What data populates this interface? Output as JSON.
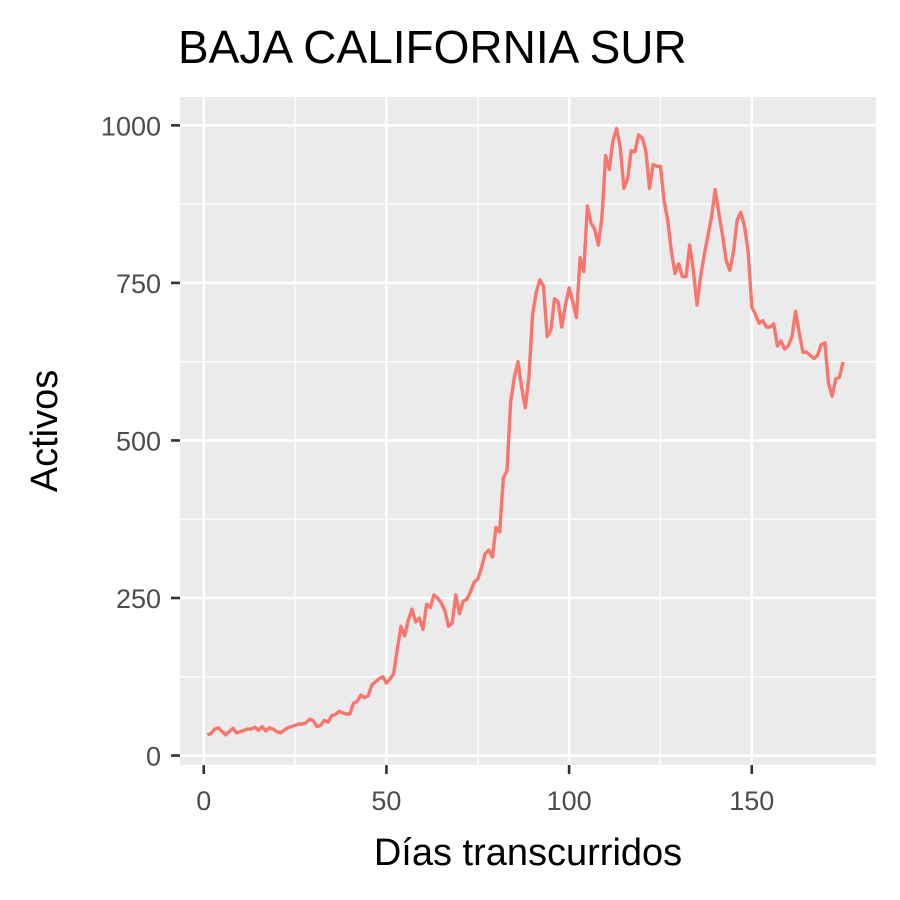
{
  "chart_data": {
    "type": "line",
    "title": "BAJA CALIFORNIA SUR",
    "xlabel": "Días transcurridos",
    "ylabel": "Activos",
    "xlim": [
      -6.5,
      184
    ],
    "ylim": [
      -15,
      1045
    ],
    "x_ticks": [
      0,
      50,
      100,
      150
    ],
    "y_ticks": [
      0,
      250,
      500,
      750,
      1000
    ],
    "grid": true,
    "panel_background": "#ebebeb",
    "series": [
      {
        "color": "#f8766d",
        "x": [
          1,
          2,
          3,
          4,
          5,
          6,
          7,
          8,
          9,
          10,
          11,
          12,
          13,
          14,
          15,
          16,
          17,
          18,
          19,
          20,
          21,
          22,
          23,
          24,
          25,
          26,
          27,
          28,
          29,
          30,
          31,
          32,
          33,
          34,
          35,
          36,
          37,
          38,
          39,
          40,
          41,
          42,
          43,
          44,
          45,
          46,
          47,
          48,
          49,
          50,
          51,
          52,
          53,
          54,
          55,
          56,
          57,
          58,
          59,
          60,
          61,
          62,
          63,
          64,
          65,
          66,
          67,
          68,
          69,
          70,
          71,
          72,
          73,
          74,
          75,
          76,
          77,
          78,
          79,
          80,
          81,
          82,
          83,
          84,
          85,
          86,
          87,
          88,
          89,
          90,
          91,
          92,
          93,
          94,
          95,
          96,
          97,
          98,
          99,
          100,
          101,
          102,
          103,
          104,
          105,
          106,
          107,
          108,
          109,
          110,
          111,
          112,
          113,
          114,
          115,
          116,
          117,
          118,
          119,
          120,
          121,
          122,
          123,
          124,
          125,
          126,
          127,
          128,
          129,
          130,
          131,
          132,
          133,
          134,
          135,
          136,
          137,
          138,
          139,
          140,
          141,
          142,
          143,
          144,
          145,
          146,
          147,
          148,
          149,
          150,
          151,
          152,
          153,
          154,
          155,
          156,
          157,
          158,
          159,
          160,
          161,
          162,
          163,
          164,
          165,
          166,
          167,
          168,
          169,
          170,
          171,
          172,
          173,
          174,
          175
        ],
        "y": [
          33,
          35,
          42,
          44,
          38,
          33,
          38,
          43,
          36,
          38,
          40,
          42,
          42,
          45,
          40,
          46,
          39,
          44,
          42,
          38,
          36,
          40,
          44,
          46,
          48,
          50,
          50,
          52,
          58,
          55,
          46,
          48,
          56,
          53,
          63,
          65,
          70,
          68,
          66,
          66,
          83,
          86,
          96,
          92,
          95,
          112,
          117,
          122,
          125,
          115,
          122,
          130,
          170,
          205,
          190,
          215,
          232,
          212,
          218,
          200,
          240,
          235,
          255,
          250,
          242,
          230,
          205,
          210,
          255,
          225,
          245,
          248,
          260,
          275,
          280,
          298,
          320,
          326,
          315,
          362,
          355,
          440,
          452,
          560,
          600,
          625,
          585,
          552,
          600,
          700,
          735,
          755,
          745,
          665,
          675,
          725,
          720,
          680,
          715,
          742,
          720,
          695,
          790,
          768,
          872,
          845,
          835,
          810,
          855,
          952,
          930,
          975,
          995,
          965,
          900,
          915,
          960,
          958,
          985,
          980,
          960,
          900,
          938,
          935,
          935,
          880,
          850,
          800,
          765,
          780,
          760,
          760,
          810,
          770,
          715,
          760,
          795,
          825,
          855,
          898,
          860,
          825,
          785,
          770,
          800,
          850,
          862,
          840,
          800,
          712,
          700,
          686,
          690,
          680,
          680,
          685,
          650,
          658,
          645,
          650,
          665,
          705,
          670,
          640,
          640,
          635,
          630,
          635,
          652,
          655,
          590,
          570,
          598,
          600,
          625
        ]
      }
    ]
  }
}
